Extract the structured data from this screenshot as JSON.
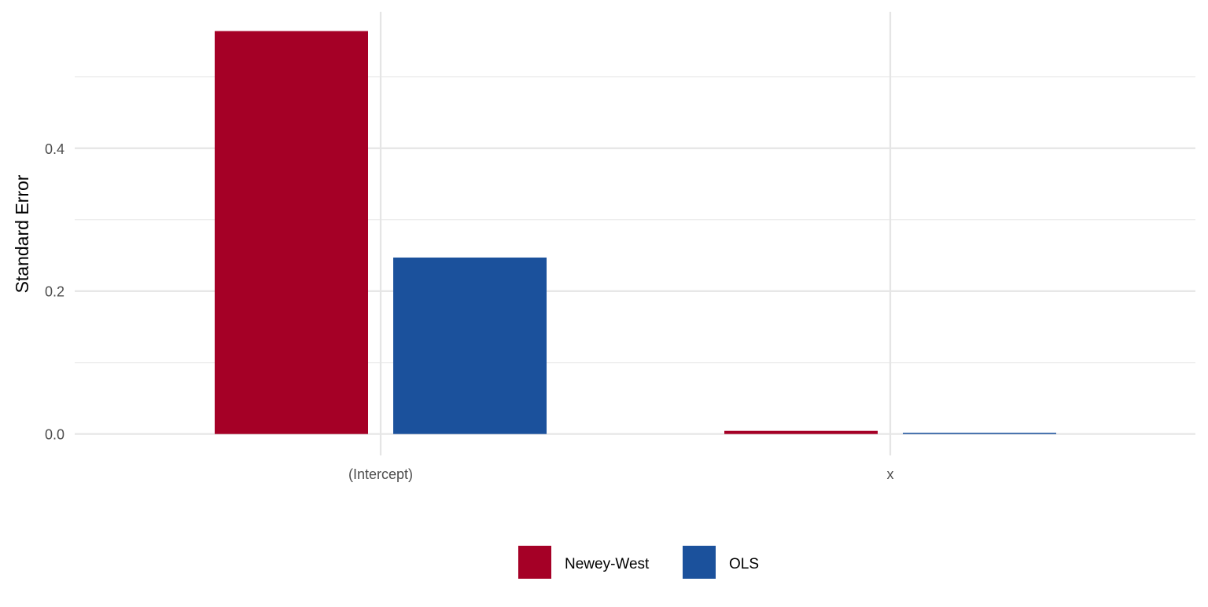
{
  "chart_data": {
    "type": "bar",
    "title": "",
    "xlabel": "",
    "ylabel": "Standard Error",
    "categories": [
      "(Intercept)",
      "x"
    ],
    "series": [
      {
        "name": "Newey-West",
        "color": "#A50026",
        "values": [
          0.564,
          0.0044
        ]
      },
      {
        "name": "OLS",
        "color": "#1B519C",
        "values": [
          0.247,
          0.0017
        ]
      }
    ],
    "ylim": [
      -0.03,
      0.591
    ],
    "yticks": [
      0.0,
      0.2,
      0.4
    ],
    "ytick_labels": [
      "0.0",
      "0.2",
      "0.4"
    ],
    "minor_yticks": [
      0.1,
      0.3,
      0.5
    ],
    "grid": true,
    "legend_position": "bottom"
  }
}
